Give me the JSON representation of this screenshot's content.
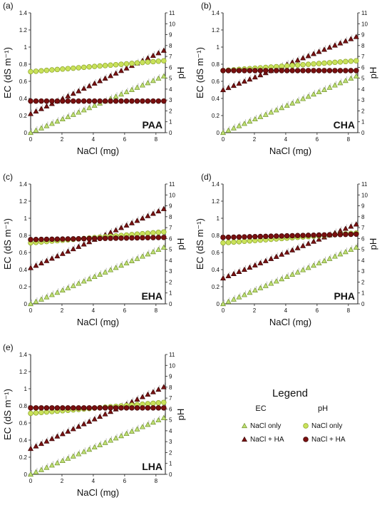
{
  "colors": {
    "ec_only": "#bfe073",
    "ec_only_stroke": "#6f8f2a",
    "ec_ha": "#7a1212",
    "ec_ha_stroke": "#3a0505",
    "ph_only": "#c9e25a",
    "ph_only_stroke": "#8aa22a",
    "ph_ha": "#7a0f0f",
    "ph_ha_stroke": "#3a0505"
  },
  "axes": {
    "xlabel": "NaCl (mg)",
    "ylabel": "EC (dS m⁻¹)",
    "y2label": "pH",
    "x_ticks": [
      "0",
      "2",
      "4",
      "6",
      "8"
    ],
    "y_ticks": [
      "0",
      "0.2",
      "0.4",
      "0.6",
      "0.8",
      "1",
      "1.2",
      "1.4"
    ],
    "y2_ticks": [
      "0",
      "1",
      "2",
      "3",
      "4",
      "5",
      "6",
      "7",
      "8",
      "9",
      "10",
      "11"
    ]
  },
  "legend": {
    "title": "Legend",
    "ec_header": "EC",
    "ph_header": "pH",
    "ec_only": "NaCl only",
    "ec_ha": "NaCl + HA",
    "ph_only": "NaCl only",
    "ph_ha": "NaCl + HA"
  },
  "chart_data": [
    {
      "type": "scatter",
      "panel_label": "(a)",
      "name": "PAA",
      "x": [
        0,
        0.34,
        0.68,
        1.02,
        1.36,
        1.7,
        2.04,
        2.38,
        2.72,
        3.06,
        3.4,
        3.74,
        4.08,
        4.42,
        4.76,
        5.1,
        5.44,
        5.78,
        6.12,
        6.46,
        6.8,
        7.14,
        7.48,
        7.82,
        8.16,
        8.5
      ],
      "xlim": [
        0,
        8.6
      ],
      "ylim": [
        0,
        1.4
      ],
      "y2lim": [
        0,
        11
      ],
      "series": [
        {
          "name": "NaCl only",
          "measure": "EC",
          "axis": "left",
          "start": 0.0,
          "end": 0.66
        },
        {
          "name": "NaCl + HA",
          "measure": "EC",
          "axis": "left",
          "start": 0.22,
          "end": 0.96
        },
        {
          "name": "NaCl only",
          "measure": "pH",
          "axis": "right",
          "start": 5.6,
          "end": 6.6
        },
        {
          "name": "NaCl + HA",
          "measure": "pH",
          "axis": "right",
          "start": 2.9,
          "end": 2.9
        }
      ]
    },
    {
      "type": "scatter",
      "panel_label": "(b)",
      "name": "CHA",
      "x": [
        0,
        0.34,
        0.68,
        1.02,
        1.36,
        1.7,
        2.04,
        2.38,
        2.72,
        3.06,
        3.4,
        3.74,
        4.08,
        4.42,
        4.76,
        5.1,
        5.44,
        5.78,
        6.12,
        6.46,
        6.8,
        7.14,
        7.48,
        7.82,
        8.16,
        8.5
      ],
      "xlim": [
        0,
        8.6
      ],
      "ylim": [
        0,
        1.4
      ],
      "y2lim": [
        0,
        11
      ],
      "series": [
        {
          "name": "NaCl only",
          "measure": "EC",
          "axis": "left",
          "start": 0.0,
          "end": 0.66
        },
        {
          "name": "NaCl + HA",
          "measure": "EC",
          "axis": "left",
          "start": 0.5,
          "end": 1.12
        },
        {
          "name": "NaCl only",
          "measure": "pH",
          "axis": "right",
          "start": 5.7,
          "end": 6.6
        },
        {
          "name": "NaCl + HA",
          "measure": "pH",
          "axis": "right",
          "start": 5.7,
          "end": 5.7
        }
      ]
    },
    {
      "type": "scatter",
      "panel_label": "(c)",
      "name": "EHA",
      "x": [
        0,
        0.34,
        0.68,
        1.02,
        1.36,
        1.7,
        2.04,
        2.38,
        2.72,
        3.06,
        3.4,
        3.74,
        4.08,
        4.42,
        4.76,
        5.1,
        5.44,
        5.78,
        6.12,
        6.46,
        6.8,
        7.14,
        7.48,
        7.82,
        8.16,
        8.5
      ],
      "xlim": [
        0,
        8.6
      ],
      "ylim": [
        0,
        1.4
      ],
      "y2lim": [
        0,
        11
      ],
      "series": [
        {
          "name": "NaCl only",
          "measure": "EC",
          "axis": "left",
          "start": 0.0,
          "end": 0.66
        },
        {
          "name": "NaCl + HA",
          "measure": "EC",
          "axis": "left",
          "start": 0.42,
          "end": 1.11
        },
        {
          "name": "NaCl only",
          "measure": "pH",
          "axis": "right",
          "start": 5.6,
          "end": 6.6
        },
        {
          "name": "NaCl + HA",
          "measure": "pH",
          "axis": "right",
          "start": 5.9,
          "end": 6.1
        }
      ]
    },
    {
      "type": "scatter",
      "panel_label": "(d)",
      "name": "PHA",
      "x": [
        0,
        0.34,
        0.68,
        1.02,
        1.36,
        1.7,
        2.04,
        2.38,
        2.72,
        3.06,
        3.4,
        3.74,
        4.08,
        4.42,
        4.76,
        5.1,
        5.44,
        5.78,
        6.12,
        6.46,
        6.8,
        7.14,
        7.48,
        7.82,
        8.16,
        8.5
      ],
      "xlim": [
        0,
        8.6
      ],
      "ylim": [
        0,
        1.4
      ],
      "y2lim": [
        0,
        11
      ],
      "series": [
        {
          "name": "NaCl only",
          "measure": "EC",
          "axis": "left",
          "start": 0.0,
          "end": 0.66
        },
        {
          "name": "NaCl + HA",
          "measure": "EC",
          "axis": "left",
          "start": 0.3,
          "end": 0.93
        },
        {
          "name": "NaCl only",
          "measure": "pH",
          "axis": "right",
          "start": 5.6,
          "end": 6.5
        },
        {
          "name": "NaCl + HA",
          "measure": "pH",
          "axis": "right",
          "start": 6.1,
          "end": 6.4
        }
      ]
    },
    {
      "type": "scatter",
      "panel_label": "(e)",
      "name": "LHA",
      "x": [
        0,
        0.34,
        0.68,
        1.02,
        1.36,
        1.7,
        2.04,
        2.38,
        2.72,
        3.06,
        3.4,
        3.74,
        4.08,
        4.42,
        4.76,
        5.1,
        5.44,
        5.78,
        6.12,
        6.46,
        6.8,
        7.14,
        7.48,
        7.82,
        8.16,
        8.5
      ],
      "xlim": [
        0,
        8.6
      ],
      "ylim": [
        0,
        1.4
      ],
      "y2lim": [
        0,
        11
      ],
      "series": [
        {
          "name": "NaCl only",
          "measure": "EC",
          "axis": "left",
          "start": 0.0,
          "end": 0.66
        },
        {
          "name": "NaCl + HA",
          "measure": "EC",
          "axis": "left",
          "start": 0.3,
          "end": 1.02
        },
        {
          "name": "NaCl only",
          "measure": "pH",
          "axis": "right",
          "start": 5.6,
          "end": 6.6
        },
        {
          "name": "NaCl + HA",
          "measure": "pH",
          "axis": "right",
          "start": 6.1,
          "end": 6.1
        }
      ]
    }
  ]
}
